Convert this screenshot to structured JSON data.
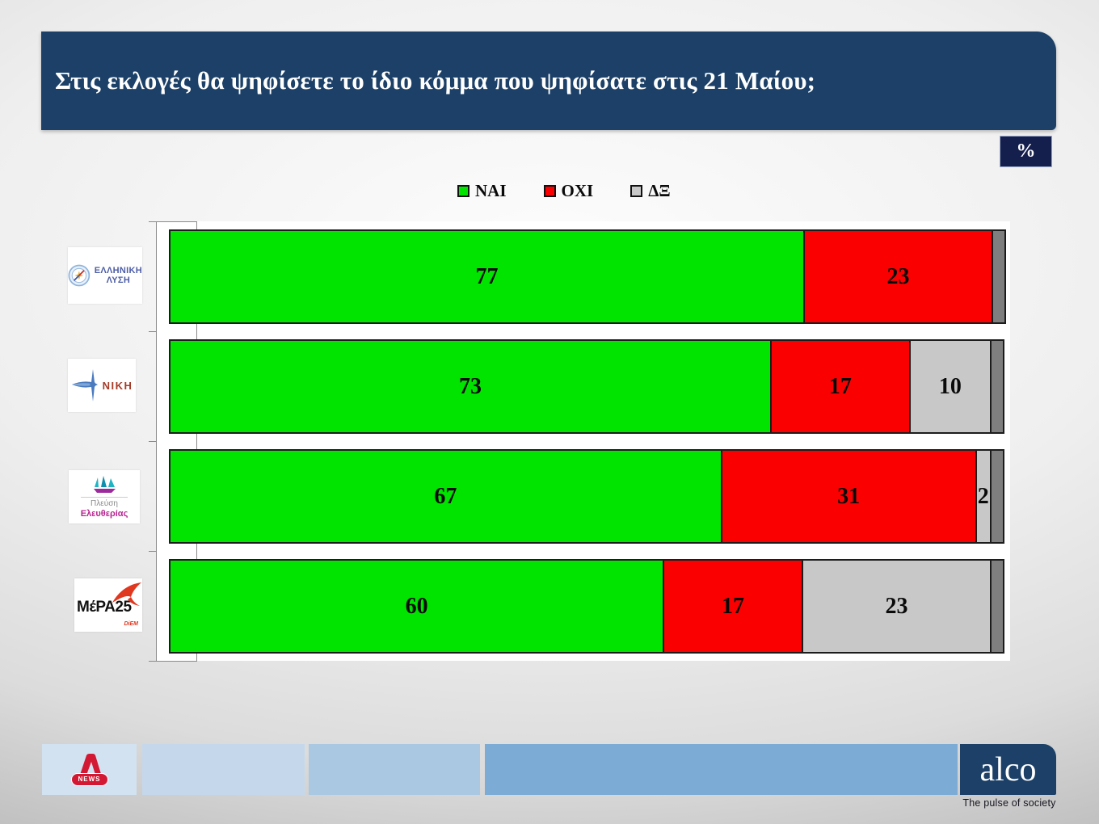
{
  "title": "Στις εκλογές θα ψηφίσετε το ίδιο κόμμα που ψηφίσατε στις 21 Μαίου;",
  "percent_badge": "%",
  "legend": [
    {
      "label": "ΝΑΙ",
      "color": "#00e400"
    },
    {
      "label": "ΟΧΙ",
      "color": "#fa0000"
    },
    {
      "label": "ΔΞ",
      "color": "#c8c8c8"
    }
  ],
  "chart_data": {
    "type": "bar",
    "orientation": "horizontal",
    "stacked": true,
    "unit": "%",
    "xlim": [
      0,
      100
    ],
    "grid": false,
    "legend_position": "top",
    "categories": [
      "ΕΛΛΗΝΙΚΗ ΛΥΣΗ",
      "ΝΙΚΗ",
      "Πλεύση Ελευθερίας",
      "ΜέΡΑ25"
    ],
    "series": [
      {
        "name": "ΝΑΙ",
        "color": "#00e400",
        "values": [
          77,
          73,
          67,
          60
        ]
      },
      {
        "name": "ΟΧΙ",
        "color": "#fa0000",
        "values": [
          23,
          17,
          31,
          17
        ]
      },
      {
        "name": "ΔΞ",
        "color": "#c8c8c8",
        "values": [
          0,
          10,
          2,
          23
        ]
      }
    ]
  },
  "parties": [
    {
      "name": "ΕΛΛΗΝΙΚΗ ΛΥΣΗ",
      "label_lines": [
        "ΕΛΛΗΝΙΚΗ",
        "ΛΥΣΗ"
      ]
    },
    {
      "name": "ΝΙΚΗ",
      "label_lines": [
        "ΝΙΚΗ"
      ]
    },
    {
      "name": "Πλεύση Ελευθερίας",
      "label_lines": [
        "Πλεύση",
        "Ελευθερίας"
      ]
    },
    {
      "name": "ΜέΡΑ25",
      "label_lines": [
        "ΜέΡΑ25",
        "DiEM"
      ]
    }
  ],
  "footer": {
    "alpha_news_label": "NEWS",
    "brand": "alco",
    "tagline": "The pulse of society"
  }
}
